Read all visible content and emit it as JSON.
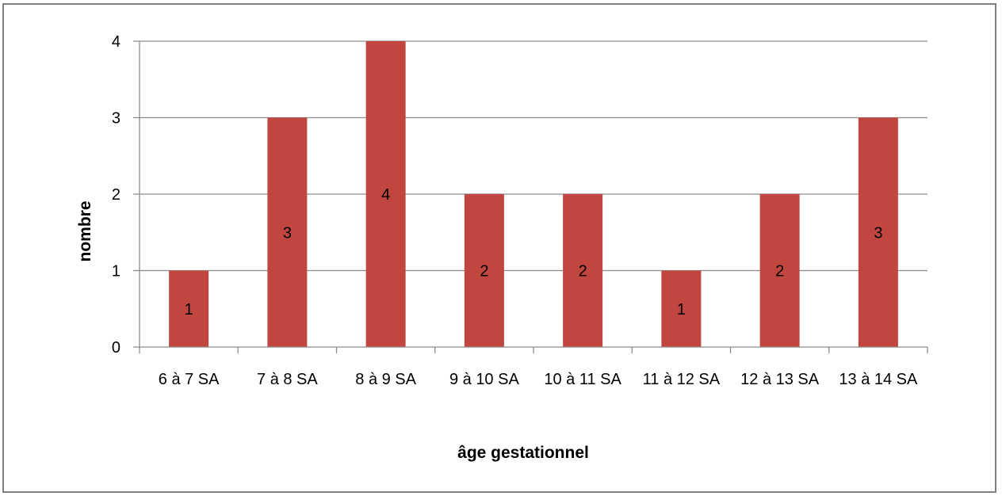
{
  "chart_data": {
    "type": "bar",
    "title": "",
    "xlabel": "âge gestationnel",
    "ylabel": "nombre",
    "categories": [
      "6 à 7 SA",
      "7 à 8 SA",
      "8 à 9 SA",
      "9 à 10 SA",
      "10 à 11 SA",
      "11 à 12 SA",
      "12 à 13 SA",
      "13 à 14 SA"
    ],
    "values": [
      1,
      3,
      4,
      2,
      2,
      1,
      2,
      3
    ],
    "data_labels": [
      "1",
      "3",
      "4",
      "2",
      "2",
      "1",
      "2",
      "3"
    ],
    "ylim": [
      0,
      4
    ],
    "yticks": [
      0,
      1,
      2,
      3,
      4
    ],
    "ytick_labels": [
      "0",
      "1",
      "2",
      "3",
      "4"
    ],
    "grid": true,
    "legend": "none",
    "colors": {
      "bar": "#c0463f",
      "grid": "#8c8c8c",
      "axis": "#8c8c8c",
      "frame": "#7f7f7f"
    }
  }
}
